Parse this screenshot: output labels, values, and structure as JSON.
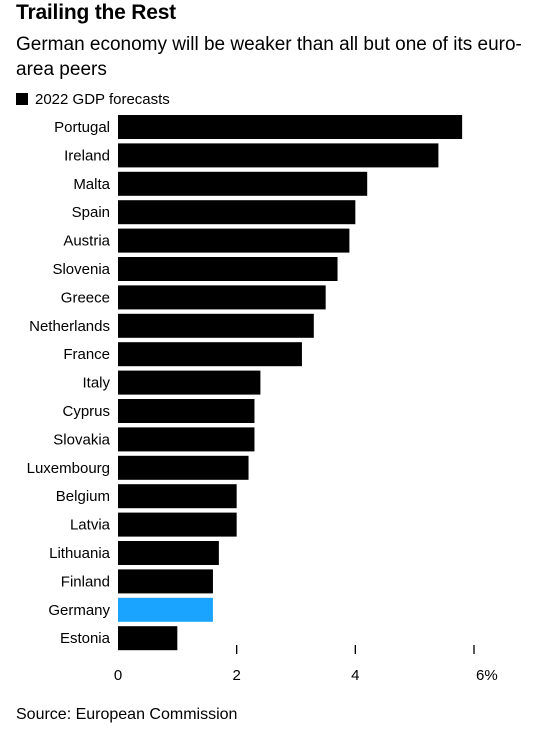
{
  "header": {
    "title": "Trailing the Rest",
    "subtitle": "German economy will be weaker than all but one of its euro-area peers"
  },
  "footer": {
    "source": "Source: European Commission"
  },
  "colors": {
    "default_bar": "#000000",
    "highlight_bar": "#1aa3ff"
  },
  "chart_data": {
    "type": "bar",
    "orientation": "horizontal",
    "title": "Trailing the Rest",
    "subtitle": "German economy will be weaker than all but one of its euro-area peers",
    "categories": [
      "Portugal",
      "Ireland",
      "Malta",
      "Spain",
      "Austria",
      "Slovenia",
      "Greece",
      "Netherlands",
      "France",
      "Italy",
      "Cyprus",
      "Slovakia",
      "Luxembourg",
      "Belgium",
      "Latvia",
      "Lithuania",
      "Finland",
      "Germany",
      "Estonia"
    ],
    "series": [
      {
        "name": "2022 GDP forecasts",
        "values": [
          5.8,
          5.4,
          4.2,
          4.0,
          3.9,
          3.7,
          3.5,
          3.3,
          3.1,
          2.4,
          2.3,
          2.3,
          2.2,
          2.0,
          2.0,
          1.7,
          1.6,
          1.6,
          1.0
        ]
      }
    ],
    "highlight": "Germany",
    "xlim": [
      0,
      6
    ],
    "xticks": [
      0,
      2,
      4,
      6
    ],
    "xtick_labels": [
      "0",
      "2",
      "4",
      "6%"
    ],
    "xlabel": "",
    "ylabel": "",
    "grid": false,
    "legend_position": "top-left"
  }
}
